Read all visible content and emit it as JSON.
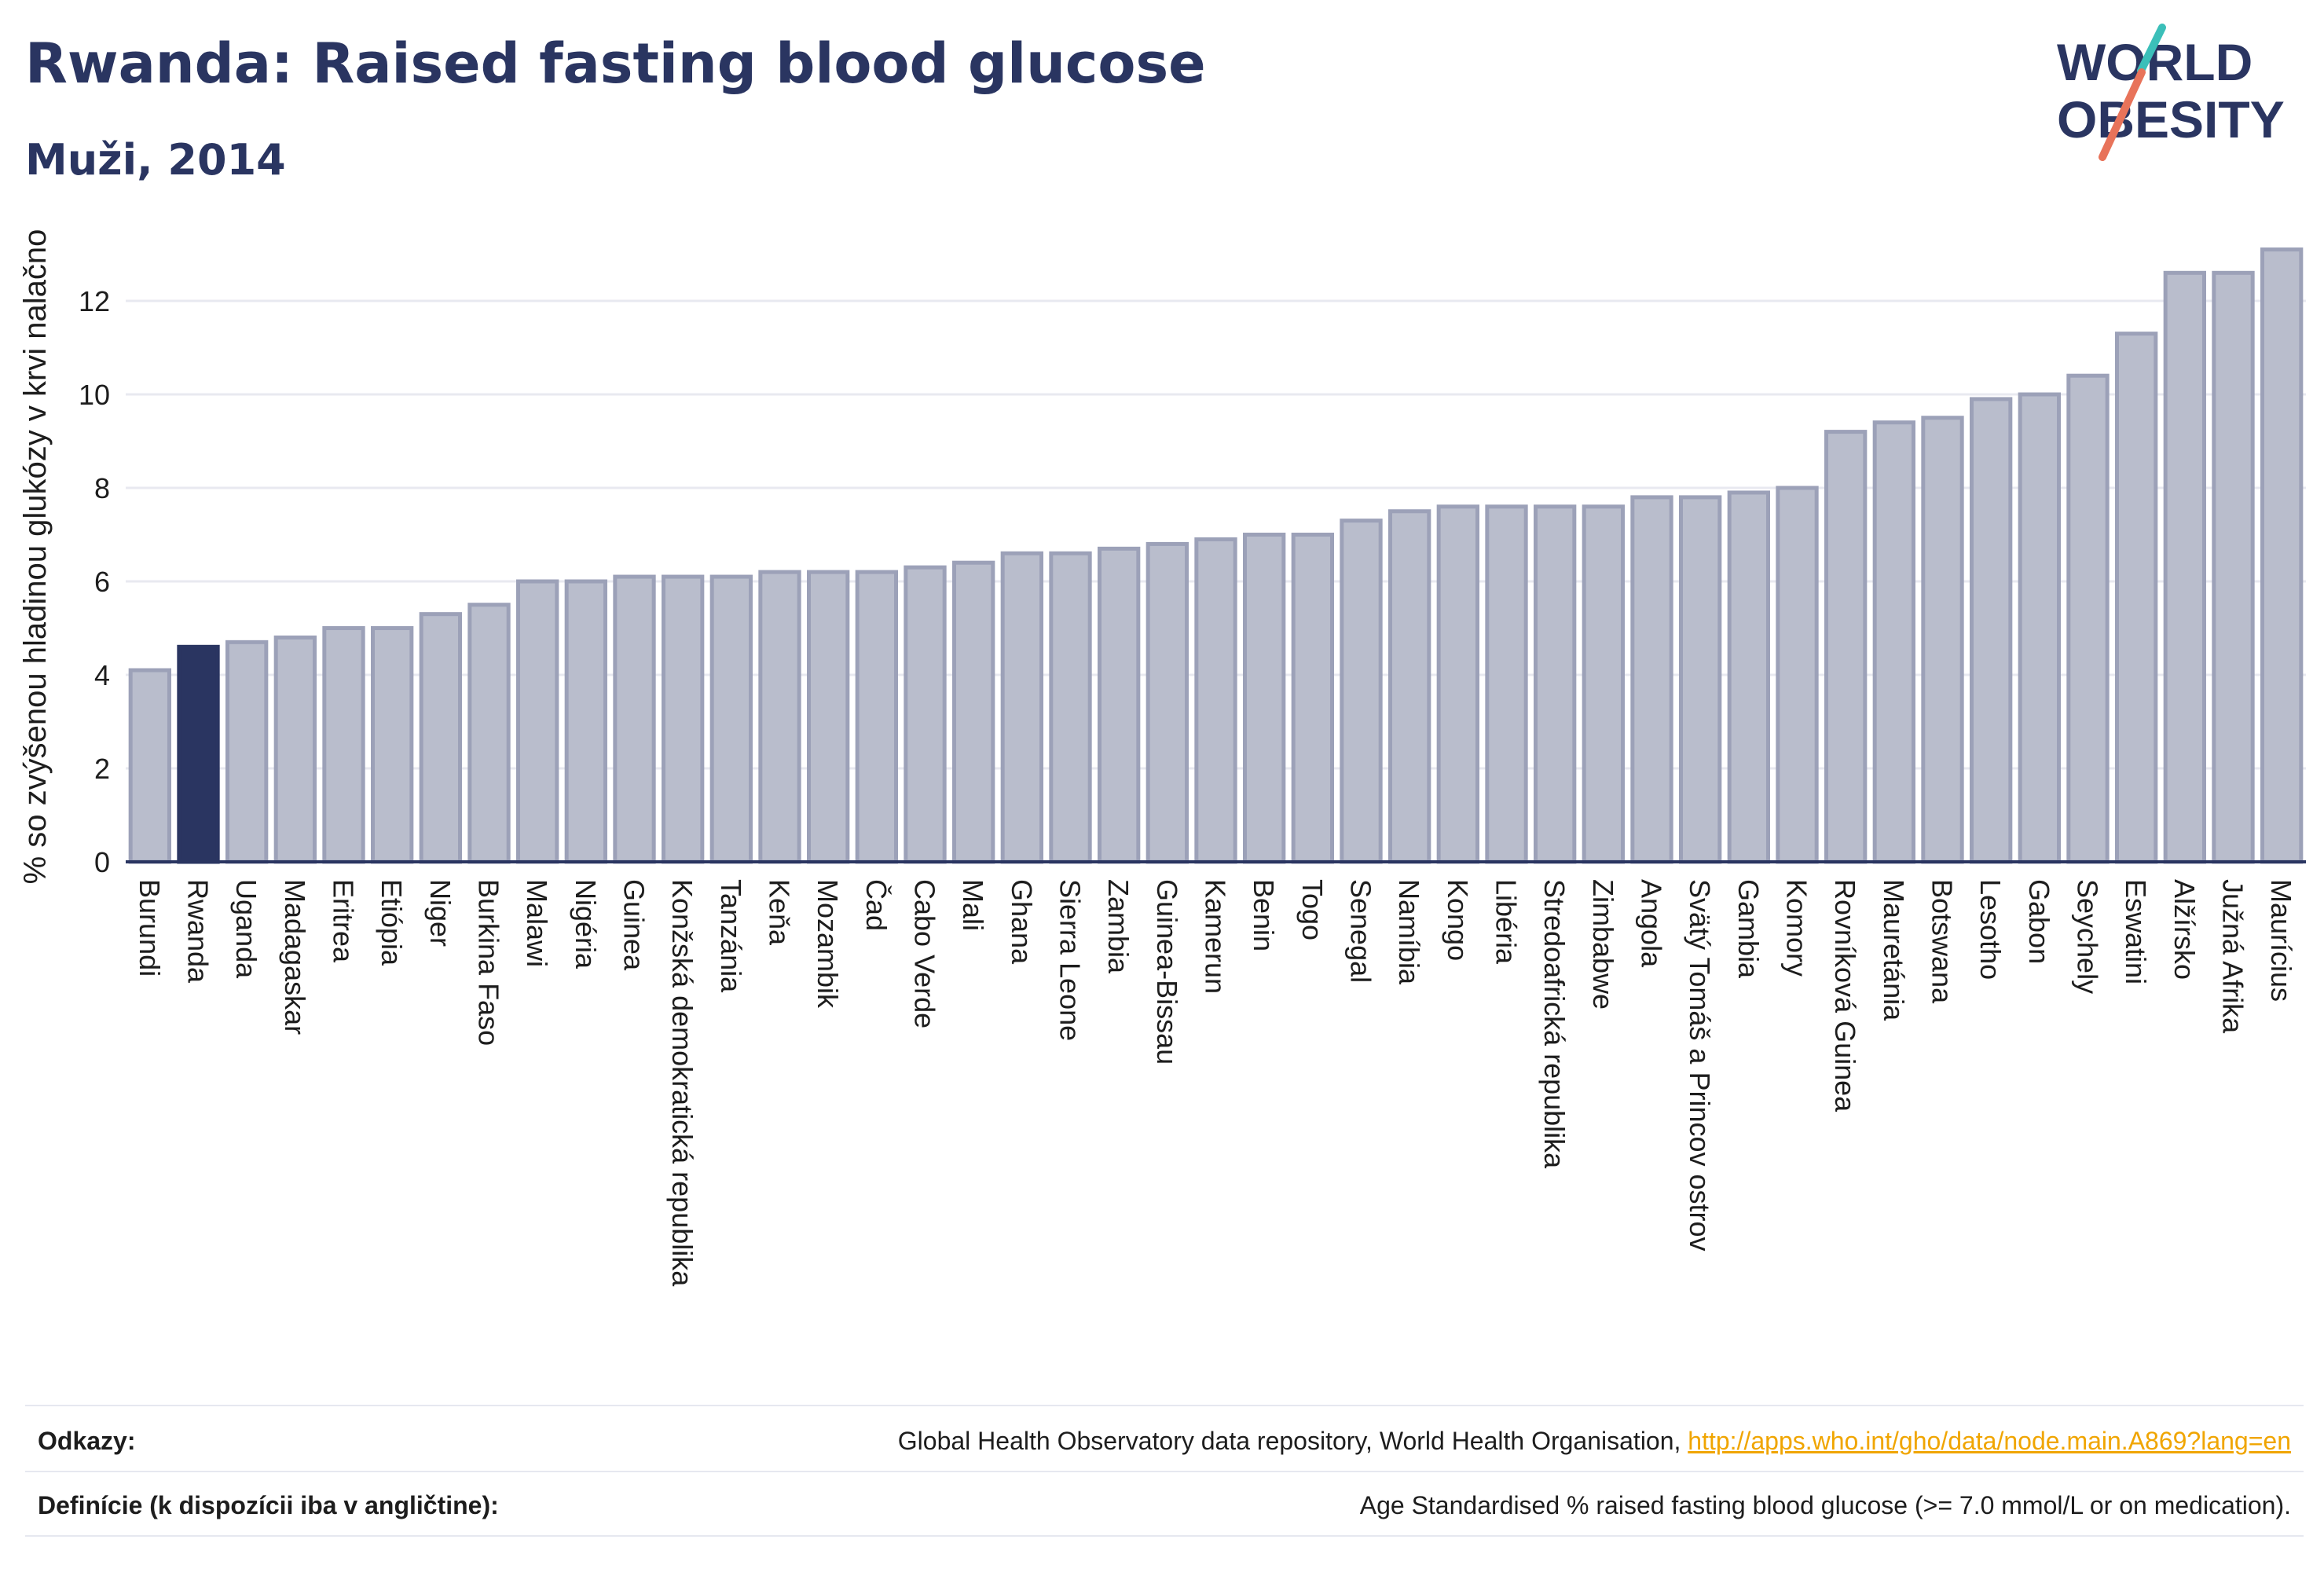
{
  "title": "Rwanda: Raised fasting blood glucose",
  "subtitle": "Muži, 2014",
  "logo": {
    "line1": "WORLD",
    "line2": "OBESITY",
    "colors": {
      "text": "#2a3561",
      "slash_orange": "#e8735a",
      "slash_teal": "#3bbfb9"
    }
  },
  "colors": {
    "bar_fill": "#b9bdcc",
    "bar_stroke": "#9ca1b8",
    "highlight_fill": "#2a3561",
    "axis": "#2a3561",
    "grid": "#e8e9f0",
    "text": "#1d1d1d"
  },
  "chart_data": {
    "type": "bar",
    "title": "Rwanda: Raised fasting blood glucose",
    "subtitle": "Muži, 2014",
    "xlabel": "",
    "ylabel": "% so zvýšenou hladinou glukózy v krvi nalačno",
    "ylim": [
      0,
      13.5
    ],
    "yticks": [
      0,
      2,
      4,
      6,
      8,
      10,
      12
    ],
    "grid": true,
    "highlight": "Rwanda",
    "categories": [
      "Burundi",
      "Rwanda",
      "Uganda",
      "Madagaskar",
      "Eritrea",
      "Etiópia",
      "Niger",
      "Burkina Faso",
      "Malawi",
      "Nigéria",
      "Guinea",
      "Konžská demokratická republika",
      "Tanzánia",
      "Keňa",
      "Mozambik",
      "Čad",
      "Cabo Verde",
      "Mali",
      "Ghana",
      "Sierra Leone",
      "Zambia",
      "Guinea-Bissau",
      "Kamerun",
      "Benin",
      "Togo",
      "Senegal",
      "Namíbia",
      "Kongo",
      "Libéria",
      "Stredoafrická republika",
      "Zimbabwe",
      "Angola",
      "Svätý Tomáš a Princov ostrov",
      "Gambia",
      "Komory",
      "Rovníková Guinea",
      "Mauretánia",
      "Botswana",
      "Lesotho",
      "Gabon",
      "Seychely",
      "Eswatini",
      "Alžírsko",
      "Južná Afrika",
      "Maurícius"
    ],
    "values": [
      4.1,
      4.6,
      4.7,
      4.8,
      5.0,
      5.0,
      5.3,
      5.5,
      6.0,
      6.0,
      6.1,
      6.1,
      6.1,
      6.2,
      6.2,
      6.2,
      6.3,
      6.4,
      6.6,
      6.6,
      6.7,
      6.8,
      6.9,
      7.0,
      7.0,
      7.3,
      7.5,
      7.6,
      7.6,
      7.6,
      7.6,
      7.8,
      7.8,
      7.9,
      8.0,
      9.2,
      9.4,
      9.5,
      9.9,
      10.0,
      10.4,
      11.3,
      12.6,
      12.6,
      13.1
    ]
  },
  "footer": {
    "references_label": "Odkazy:",
    "references_text": "Global Health Observatory data repository, World Health Organisation, ",
    "references_link": "http://apps.who.int/gho/data/node.main.A869?lang=en",
    "definitions_label": "Definície (k dispozícii iba v angličtine):",
    "definitions_text": "Age Standardised % raised fasting blood glucose (>= 7.0 mmol/L or on medication)."
  }
}
